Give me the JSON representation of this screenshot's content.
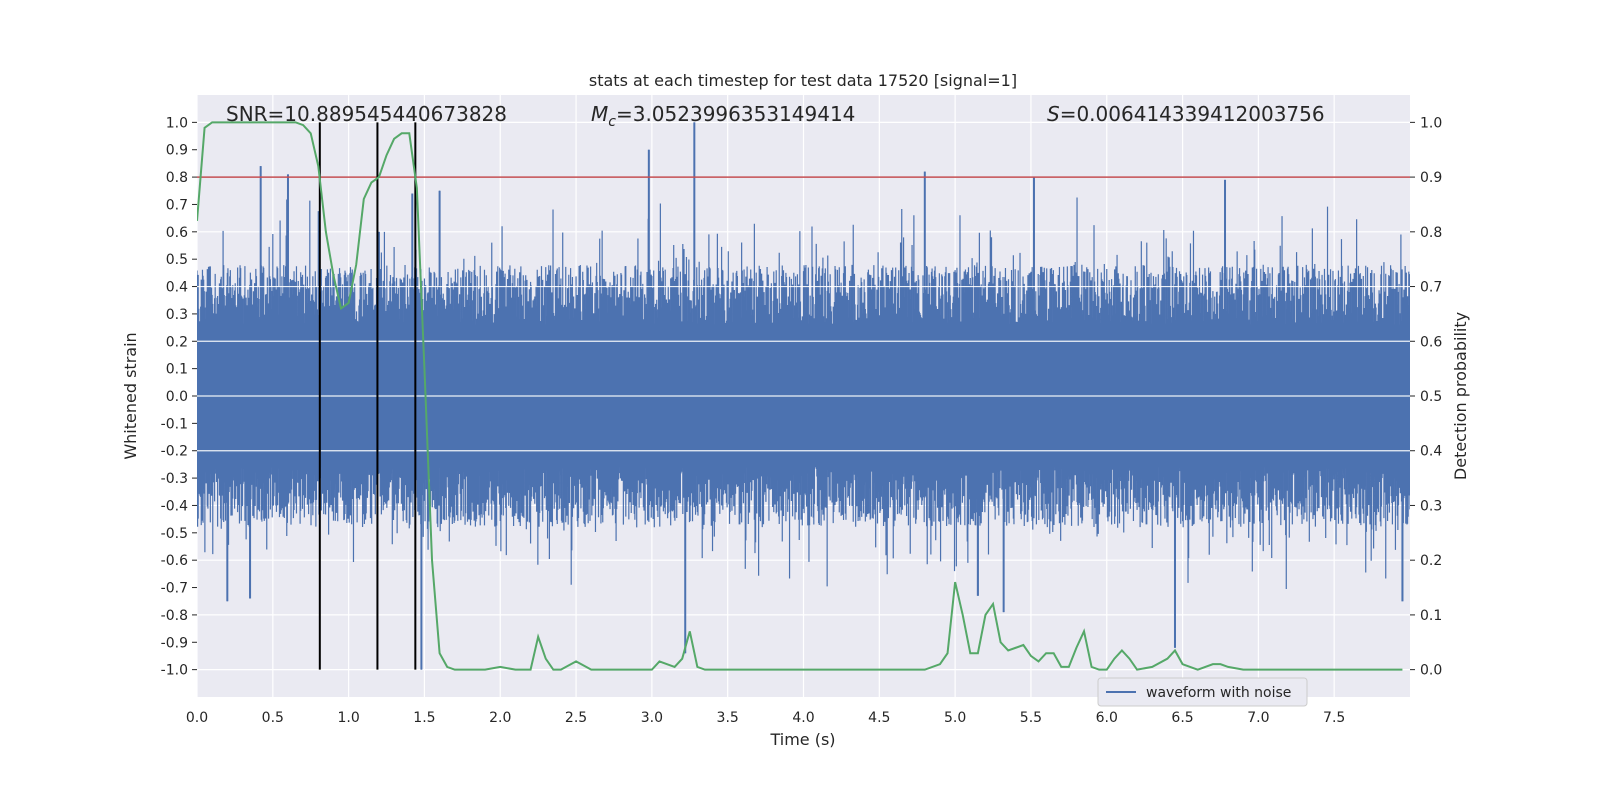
{
  "chart_data": {
    "type": "line",
    "title": "stats at each timestep for test data 17520 [signal=1]",
    "xlabel": "Time (s)",
    "ylabel": "Whitened strain",
    "ylabel_right": "Detection probability",
    "xlim": [
      0.0,
      8.0
    ],
    "ylim": [
      -1.1,
      1.1
    ],
    "ylim_right": [
      -0.05,
      1.05
    ],
    "x_ticks": [
      "0.0",
      "0.5",
      "1.0",
      "1.5",
      "2.0",
      "2.5",
      "3.0",
      "3.5",
      "4.0",
      "4.5",
      "5.0",
      "5.5",
      "6.0",
      "6.5",
      "7.0",
      "7.5"
    ],
    "y_ticks": [
      "1.0",
      "0.9",
      "0.8",
      "0.7",
      "0.6",
      "0.5",
      "0.4",
      "0.3",
      "0.2",
      "0.1",
      "0.0",
      "-0.1",
      "-0.2",
      "-0.3",
      "-0.4",
      "-0.5",
      "-0.6",
      "-0.7",
      "-0.8",
      "-0.9",
      "-1.0"
    ],
    "y_ticks_right": [
      "1.0",
      "0.9",
      "0.8",
      "0.7",
      "0.6",
      "0.5",
      "0.4",
      "0.3",
      "0.2",
      "0.1",
      "0.0"
    ],
    "grid": true,
    "legend_position": "lower-right",
    "annotations": {
      "snr": "SNR=10.889545440673828",
      "mc_symbol": "M",
      "mc_sub": "c",
      "mc_value": "=3.0523996353149414",
      "s_symbol": "S",
      "s_value": "=0.006414339412003756"
    },
    "threshold_line": {
      "y": 0.8,
      "color": "#c44e52"
    },
    "vertical_lines": {
      "x": [
        0.81,
        1.19,
        1.44
      ],
      "color": "#000000",
      "y_range": [
        -1.0,
        1.0
      ]
    },
    "series": [
      {
        "name": "waveform with noise",
        "axis": "left",
        "color": "#4c72b0",
        "envelope_peaks": [
          {
            "x": 0.42,
            "y": 0.84
          },
          {
            "x": 0.6,
            "y": 0.81
          },
          {
            "x": 1.2,
            "y": 0.6
          },
          {
            "x": 1.42,
            "y": 0.74
          },
          {
            "x": 1.6,
            "y": 0.75
          },
          {
            "x": 2.98,
            "y": 0.9
          },
          {
            "x": 3.28,
            "y": 1.0
          },
          {
            "x": 4.8,
            "y": 0.82
          },
          {
            "x": 5.52,
            "y": 0.8
          },
          {
            "x": 6.78,
            "y": 0.79
          }
        ],
        "envelope_troughs": [
          {
            "x": 0.2,
            "y": -0.75
          },
          {
            "x": 0.35,
            "y": -0.74
          },
          {
            "x": 1.48,
            "y": -1.0
          },
          {
            "x": 3.22,
            "y": -0.94
          },
          {
            "x": 5.15,
            "y": -0.73
          },
          {
            "x": 5.32,
            "y": -0.79
          },
          {
            "x": 6.45,
            "y": -0.92
          },
          {
            "x": 7.95,
            "y": -0.75
          }
        ]
      },
      {
        "axis": "right",
        "color": "#55a868",
        "x": [
          0.0,
          0.05,
          0.1,
          0.2,
          0.3,
          0.4,
          0.5,
          0.6,
          0.65,
          0.7,
          0.75,
          0.8,
          0.85,
          0.9,
          0.95,
          1.0,
          1.05,
          1.1,
          1.15,
          1.2,
          1.25,
          1.3,
          1.35,
          1.4,
          1.45,
          1.5,
          1.55,
          1.6,
          1.65,
          1.7,
          1.8,
          1.9,
          2.0,
          2.1,
          2.2,
          2.25,
          2.3,
          2.35,
          2.4,
          2.5,
          2.6,
          2.7,
          2.8,
          2.9,
          3.0,
          3.05,
          3.1,
          3.15,
          3.2,
          3.25,
          3.3,
          3.35,
          3.4,
          3.5,
          3.6,
          3.8,
          4.0,
          4.2,
          4.4,
          4.6,
          4.8,
          4.9,
          4.95,
          5.0,
          5.05,
          5.1,
          5.15,
          5.2,
          5.25,
          5.3,
          5.35,
          5.4,
          5.45,
          5.5,
          5.55,
          5.6,
          5.65,
          5.7,
          5.75,
          5.8,
          5.85,
          5.9,
          5.95,
          6.0,
          6.05,
          6.1,
          6.15,
          6.2,
          6.3,
          6.4,
          6.45,
          6.5,
          6.6,
          6.7,
          6.75,
          6.8,
          6.9,
          7.0,
          7.2,
          7.4,
          7.6,
          7.8,
          7.95
        ],
        "y": [
          0.82,
          0.99,
          1.0,
          1.0,
          1.0,
          1.0,
          1.0,
          1.0,
          1.0,
          0.995,
          0.98,
          0.92,
          0.8,
          0.72,
          0.66,
          0.67,
          0.74,
          0.86,
          0.89,
          0.9,
          0.94,
          0.97,
          0.98,
          0.98,
          0.88,
          0.55,
          0.2,
          0.03,
          0.005,
          0.0,
          0.0,
          0.0,
          0.005,
          0.0,
          0.0,
          0.06,
          0.02,
          0.0,
          0.0,
          0.015,
          0.0,
          0.0,
          0.0,
          0.0,
          0.0,
          0.015,
          0.01,
          0.005,
          0.02,
          0.07,
          0.005,
          0.0,
          0.0,
          0.0,
          0.0,
          0.0,
          0.0,
          0.0,
          0.0,
          0.0,
          0.0,
          0.01,
          0.03,
          0.16,
          0.1,
          0.03,
          0.03,
          0.1,
          0.12,
          0.05,
          0.035,
          0.04,
          0.045,
          0.025,
          0.015,
          0.03,
          0.03,
          0.005,
          0.005,
          0.04,
          0.07,
          0.005,
          0.0,
          0.0,
          0.02,
          0.035,
          0.02,
          0.0,
          0.005,
          0.02,
          0.035,
          0.01,
          0.0,
          0.01,
          0.01,
          0.005,
          0.0,
          0.0,
          0.0,
          0.0,
          0.0,
          0.0,
          0.0
        ]
      }
    ]
  }
}
